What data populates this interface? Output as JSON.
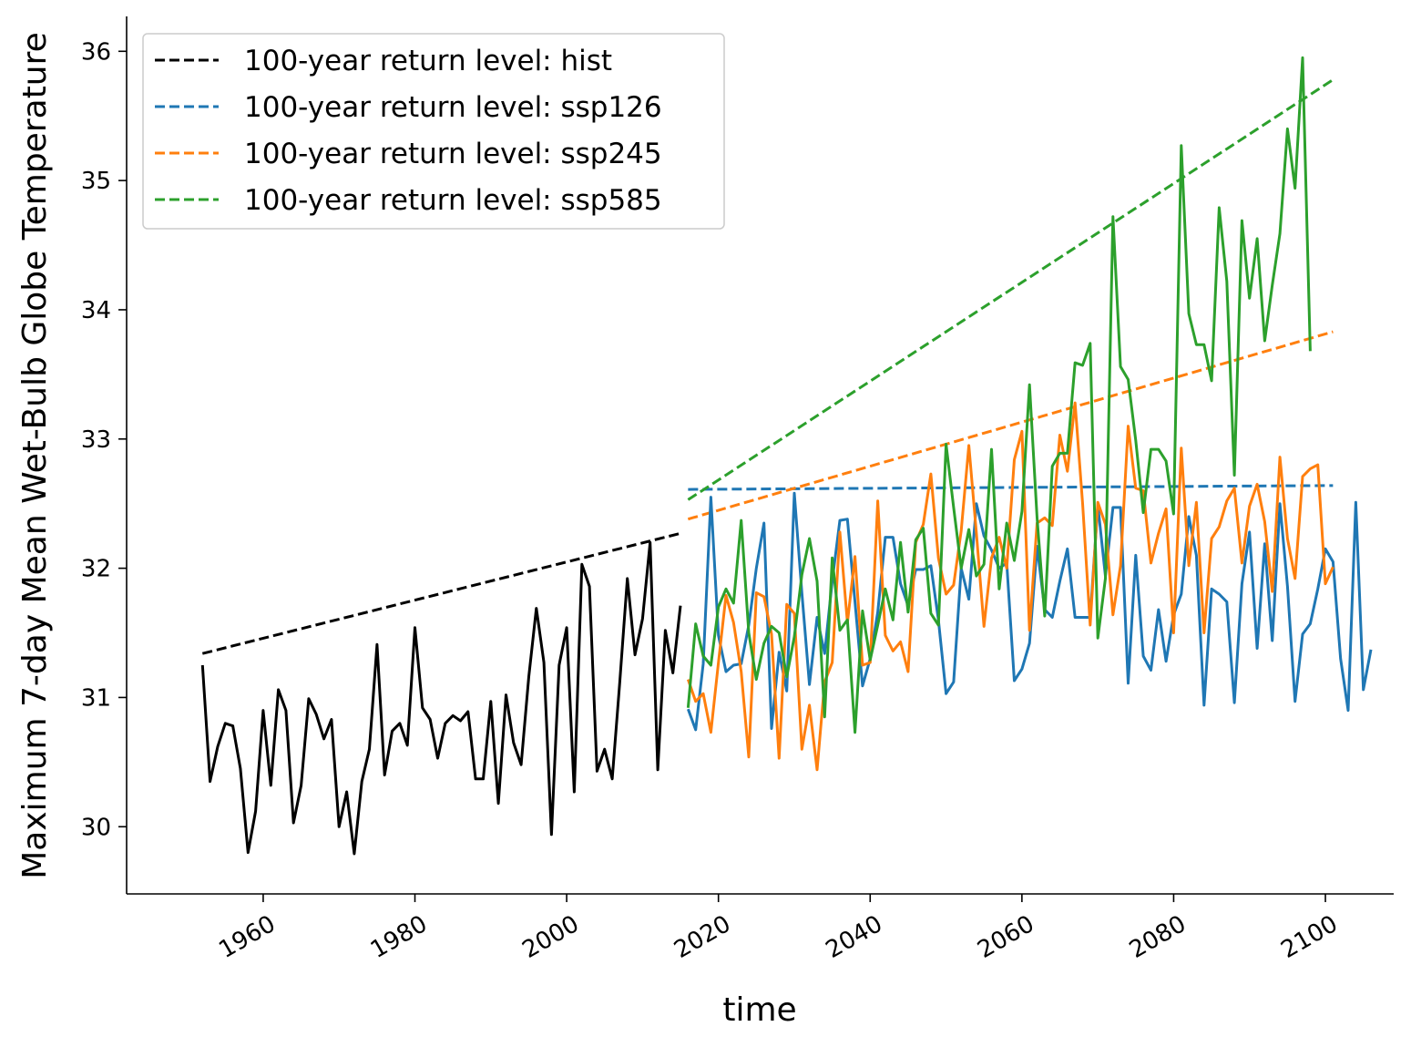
{
  "chart_data": {
    "type": "line",
    "title": "",
    "xlabel": "time",
    "ylabel": "Maximum 7-day Mean Wet-Bulb Globe Temperature",
    "xlim": [
      1942,
      2109
    ],
    "ylim": [
      29.48,
      36.27
    ],
    "xticks": [
      1960,
      1980,
      2000,
      2020,
      2040,
      2060,
      2080,
      2100
    ],
    "yticks": [
      30,
      31,
      32,
      33,
      34,
      35,
      36
    ],
    "grid": false,
    "legend_position": "top-left",
    "series": [
      {
        "name": "hist",
        "color": "#000000",
        "x_start": 1952,
        "values": [
          31.25,
          30.35,
          30.62,
          30.8,
          30.78,
          30.45,
          29.8,
          30.12,
          30.9,
          30.32,
          31.06,
          30.9,
          30.03,
          30.32,
          30.99,
          30.87,
          30.68,
          30.83,
          30.0,
          30.27,
          29.79,
          30.35,
          30.6,
          31.41,
          30.4,
          30.74,
          30.8,
          30.63,
          31.54,
          30.92,
          30.83,
          30.53,
          30.8,
          30.86,
          30.82,
          30.89,
          30.37,
          30.37,
          30.97,
          30.18,
          31.02,
          30.65,
          30.48,
          31.16,
          31.69,
          31.27,
          29.94,
          31.25,
          31.54,
          30.27,
          32.03,
          31.86,
          30.43,
          30.6,
          30.37,
          31.12,
          31.92,
          31.33,
          31.61,
          32.2,
          30.44,
          31.52,
          31.19,
          31.71
        ]
      },
      {
        "name": "ssp126",
        "color": "#1f77b4",
        "x_start": 2016,
        "values": [
          30.91,
          30.75,
          31.26,
          32.55,
          31.48,
          31.2,
          31.25,
          31.26,
          31.56,
          32.0,
          32.35,
          30.76,
          31.35,
          31.05,
          32.58,
          31.81,
          31.1,
          31.62,
          31.34,
          31.9,
          32.37,
          32.38,
          31.74,
          31.09,
          31.3,
          31.66,
          32.24,
          32.24,
          31.88,
          31.71,
          31.99,
          31.99,
          32.02,
          31.6,
          31.03,
          31.12,
          32.0,
          31.76,
          32.5,
          32.25,
          32.14,
          32.0,
          32.04,
          31.13,
          31.22,
          31.42,
          32.17,
          31.68,
          31.62,
          31.9,
          32.15,
          31.62,
          31.62,
          31.62,
          32.49,
          31.94,
          32.47,
          32.47,
          31.11,
          32.1,
          31.32,
          31.21,
          31.68,
          31.28,
          31.64,
          31.8,
          32.4,
          32.1,
          30.94,
          31.84,
          31.8,
          31.74,
          30.96,
          31.88,
          32.28,
          31.38,
          32.19,
          31.44,
          32.5,
          31.86,
          30.97,
          31.49,
          31.57,
          31.84,
          32.15,
          32.05,
          31.3,
          30.9,
          32.51,
          31.06,
          31.37
        ]
      },
      {
        "name": "ssp245",
        "color": "#ff7f0e",
        "x_start": 2016,
        "values": [
          31.14,
          30.97,
          31.03,
          30.73,
          31.27,
          31.79,
          31.58,
          31.2,
          30.54,
          31.81,
          31.78,
          31.49,
          30.53,
          31.72,
          31.65,
          30.6,
          30.94,
          30.44,
          31.12,
          31.27,
          32.28,
          31.58,
          32.09,
          31.25,
          31.27,
          32.52,
          31.48,
          31.36,
          31.43,
          31.2,
          32.2,
          32.34,
          32.73,
          32.08,
          31.8,
          31.87,
          32.29,
          32.95,
          32.27,
          31.55,
          32.08,
          32.24,
          32.0,
          32.84,
          33.06,
          31.52,
          32.35,
          32.39,
          32.33,
          33.03,
          32.75,
          33.28,
          32.5,
          31.56,
          32.51,
          32.34,
          31.64,
          32.02,
          33.1,
          32.62,
          32.6,
          32.04,
          32.27,
          32.46,
          31.5,
          32.93,
          32.02,
          32.51,
          31.5,
          32.23,
          32.32,
          32.52,
          32.62,
          32.04,
          32.48,
          32.65,
          32.36,
          31.82,
          32.86,
          32.23,
          31.92,
          32.71,
          32.77,
          32.8,
          31.88,
          32.01
        ]
      },
      {
        "name": "ssp585",
        "color": "#2ca02c",
        "x_start": 2016,
        "values": [
          30.92,
          31.57,
          31.32,
          31.25,
          31.7,
          31.84,
          31.73,
          32.37,
          31.5,
          31.14,
          31.42,
          31.55,
          31.5,
          31.16,
          31.47,
          31.95,
          32.23,
          31.9,
          30.85,
          32.08,
          31.52,
          31.6,
          30.73,
          31.67,
          31.29,
          31.56,
          31.84,
          31.6,
          32.2,
          31.66,
          32.22,
          32.31,
          31.65,
          31.56,
          32.96,
          32.47,
          32.0,
          32.3,
          31.94,
          32.03,
          32.92,
          31.84,
          32.35,
          32.06,
          32.44,
          33.42,
          32.39,
          31.63,
          32.79,
          32.89,
          32.89,
          33.59,
          33.57,
          33.74,
          31.46,
          31.92,
          34.72,
          33.56,
          33.46,
          32.99,
          32.43,
          32.92,
          32.92,
          32.83,
          32.42,
          35.27,
          33.97,
          33.73,
          33.73,
          33.45,
          34.79,
          34.22,
          32.72,
          34.69,
          34.09,
          34.55,
          33.76,
          34.19,
          34.59,
          35.4,
          34.94,
          35.95,
          33.68
        ]
      }
    ],
    "return_levels": [
      {
        "label": "100-year return level: hist",
        "color": "#000000",
        "x": [
          1952,
          2015
        ],
        "y": [
          31.34,
          32.27
        ]
      },
      {
        "label": "100-year return level: ssp126",
        "color": "#1f77b4",
        "x": [
          2016,
          2101
        ],
        "y": [
          32.61,
          32.64
        ]
      },
      {
        "label": "100-year return level: ssp245",
        "color": "#ff7f0e",
        "x": [
          2016,
          2101
        ],
        "y": [
          32.38,
          33.83
        ]
      },
      {
        "label": "100-year return level: ssp585",
        "color": "#2ca02c",
        "x": [
          2016,
          2101
        ],
        "y": [
          32.53,
          35.78
        ]
      }
    ]
  }
}
